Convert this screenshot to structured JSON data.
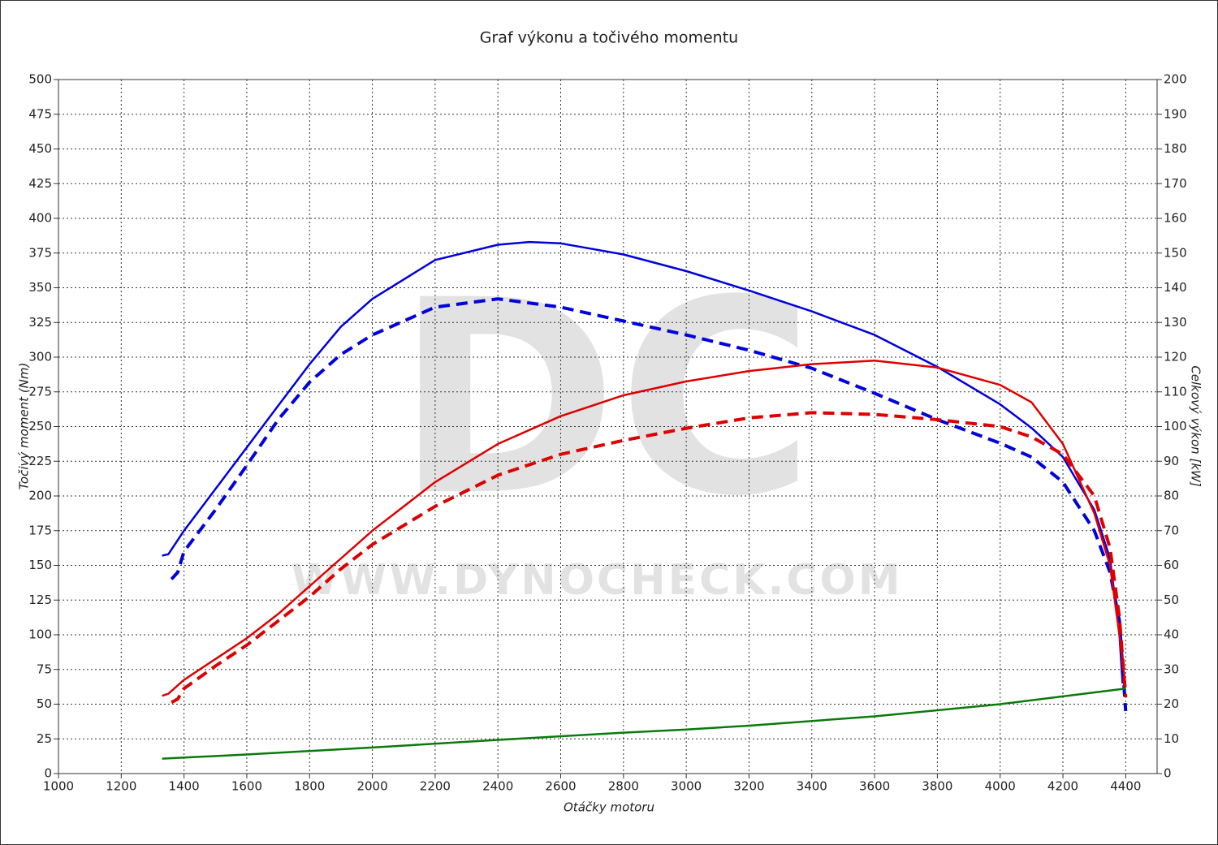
{
  "chart_data": {
    "type": "line",
    "title": "Graf výkonu a točivého momentu",
    "watermark": "DC",
    "watermark_url": "WWW.DYNOCHECK.COM",
    "x_label": "Otáčky motoru",
    "y_label": "Točivý moment (Nm)",
    "y2_label": "Celkový výkon [kW]",
    "xlim": [
      1000,
      4500
    ],
    "xticks": [
      1000,
      1200,
      1400,
      1600,
      1800,
      2000,
      2200,
      2400,
      2600,
      2800,
      3000,
      3200,
      3400,
      3600,
      3800,
      4000,
      4200,
      4400
    ],
    "ylim": [
      0,
      500
    ],
    "yticks": [
      0,
      25,
      50,
      75,
      100,
      125,
      150,
      175,
      200,
      225,
      250,
      275,
      300,
      325,
      350,
      375,
      400,
      425,
      450,
      475,
      500
    ],
    "y2lim": [
      0,
      200
    ],
    "y2ticks": [
      0,
      10,
      20,
      30,
      40,
      50,
      60,
      70,
      80,
      90,
      100,
      110,
      120,
      130,
      140,
      150,
      160,
      170,
      180,
      190,
      200
    ],
    "grid": true,
    "series": [
      {
        "color": "#0000dd",
        "dashed": false,
        "axis": "y",
        "x": [
          1330,
          1350,
          1400,
          1500,
          1600,
          1700,
          1800,
          1900,
          2000,
          2200,
          2400,
          2500,
          2600,
          2800,
          3000,
          3200,
          3400,
          3600,
          3800,
          4000,
          4100,
          4200,
          4300,
          4350,
          4380,
          4390
        ],
        "values": [
          157,
          158,
          175,
          205,
          235,
          265,
          295,
          322,
          342,
          370,
          381,
          383,
          382,
          374,
          362,
          348,
          333,
          316,
          293,
          266,
          249,
          228,
          190,
          155,
          100,
          65
        ]
      },
      {
        "color": "#0000dd",
        "dashed": true,
        "axis": "y",
        "x": [
          1360,
          1380,
          1400,
          1500,
          1600,
          1700,
          1800,
          1900,
          2000,
          2200,
          2400,
          2600,
          2800,
          3000,
          3200,
          3400,
          3600,
          3800,
          4000,
          4100,
          4200,
          4300,
          4350,
          4380,
          4400
        ],
        "values": [
          140,
          145,
          160,
          190,
          222,
          255,
          282,
          302,
          316,
          336,
          342,
          336,
          326,
          316,
          305,
          292,
          274,
          255,
          238,
          228,
          210,
          175,
          145,
          110,
          45
        ]
      },
      {
        "color": "#dd0000",
        "dashed": false,
        "axis": "y2",
        "x": [
          1330,
          1350,
          1400,
          1500,
          1600,
          1700,
          1800,
          1900,
          2000,
          2200,
          2400,
          2600,
          2800,
          3000,
          3200,
          3400,
          3600,
          3800,
          4000,
          4100,
          4200,
          4300,
          4350,
          4380,
          4400
        ],
        "values": [
          22.4,
          23,
          27,
          33,
          39,
          46,
          54,
          62,
          70,
          84,
          95,
          103,
          109,
          113,
          116,
          118,
          119,
          117,
          112,
          107,
          95,
          75,
          60,
          40,
          25
        ]
      },
      {
        "color": "#dd0000",
        "dashed": true,
        "axis": "y2",
        "x": [
          1360,
          1380,
          1400,
          1500,
          1600,
          1700,
          1800,
          1900,
          2000,
          2200,
          2400,
          2600,
          2800,
          3000,
          3200,
          3400,
          3600,
          3800,
          4000,
          4100,
          4200,
          4300,
          4350,
          4380,
          4400
        ],
        "values": [
          20.5,
          21.5,
          24.5,
          31,
          37,
          44,
          51,
          59,
          66,
          77,
          86,
          92,
          96,
          99.5,
          102.5,
          104,
          103.5,
          102,
          100,
          97,
          92,
          80,
          65,
          45,
          22
        ]
      },
      {
        "color": "#0a7a0a",
        "dashed": false,
        "axis": "y2",
        "x": [
          1330,
          1600,
          2000,
          2400,
          2800,
          3000,
          3200,
          3600,
          4000,
          4400
        ],
        "values": [
          4.3,
          5.5,
          7.5,
          9.7,
          11.8,
          12.7,
          13.8,
          16.5,
          20,
          24.5
        ]
      }
    ]
  }
}
